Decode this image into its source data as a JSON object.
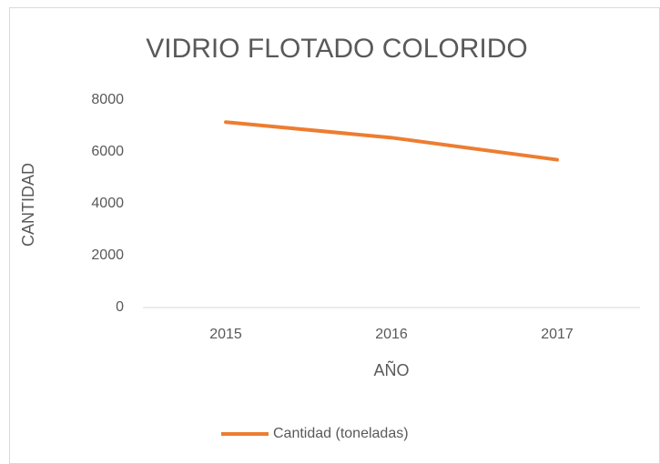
{
  "chart_data": {
    "type": "line",
    "title": "VIDRIO FLOTADO COLORIDO",
    "x_label": "AÑO",
    "y_label": "CANTIDAD",
    "categories": [
      "2015",
      "2016",
      "2017"
    ],
    "series": [
      {
        "name": "Cantidad (toneladas)",
        "color": "#ed7d31",
        "values": [
          7150,
          6550,
          5700
        ]
      }
    ],
    "ylim": [
      0,
      8000
    ],
    "yticks": [
      0,
      2000,
      4000,
      6000,
      8000
    ],
    "grid": false,
    "legend": "bottom"
  }
}
